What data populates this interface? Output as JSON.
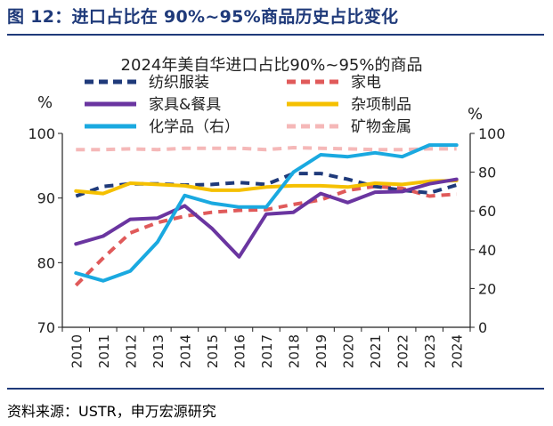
{
  "figure_title": "图 12：进口占比在 90%~95%商品历史占比变化",
  "source": "资料来源：USTR，申万宏源研究",
  "chart_data": {
    "type": "line",
    "title": "2024年美自华进口占比90%~95%的商品",
    "ylabel_left": "%",
    "ylabel_right": "%",
    "x": [
      "2010",
      "2011",
      "2012",
      "2013",
      "2014",
      "2015",
      "2016",
      "2017",
      "2018",
      "2019",
      "2020",
      "2021",
      "2022",
      "2023",
      "2024"
    ],
    "ylim_left": [
      70,
      100
    ],
    "yticks_left": [
      "70",
      "80",
      "90",
      "100"
    ],
    "ylim_right": [
      0,
      100
    ],
    "yticks_right": [
      "0",
      "20",
      "40",
      "60",
      "80",
      "100"
    ],
    "series": [
      {
        "name": "纺织服装",
        "axis": "left",
        "color": "#1f3a7a",
        "dash": "dash",
        "values": [
          90.3,
          91.8,
          92.2,
          92.2,
          92.0,
          92.1,
          92.4,
          92.1,
          93.8,
          93.8,
          92.9,
          91.8,
          91.2,
          90.8,
          92.0
        ]
      },
      {
        "name": "家电",
        "axis": "left",
        "color": "#e05a5a",
        "dash": "dash",
        "values": [
          76.5,
          80.7,
          84.6,
          86.2,
          87.2,
          87.8,
          88.1,
          88.2,
          89.0,
          89.7,
          91.2,
          91.8,
          91.5,
          90.3,
          90.6
        ]
      },
      {
        "name": "家具&餐具",
        "axis": "left",
        "color": "#6a35a0",
        "dash": "solid",
        "values": [
          82.9,
          84.1,
          86.7,
          86.9,
          88.8,
          85.3,
          80.9,
          87.5,
          87.8,
          90.7,
          89.3,
          90.9,
          91.0,
          92.2,
          92.9
        ]
      },
      {
        "name": "杂项制品",
        "axis": "left",
        "color": "#f5c000",
        "dash": "solid",
        "values": [
          91.1,
          90.7,
          92.3,
          92.1,
          91.9,
          91.2,
          91.2,
          91.7,
          91.9,
          91.9,
          91.7,
          92.3,
          92.1,
          92.6,
          92.7
        ]
      },
      {
        "name": "化学品（右）",
        "axis": "right",
        "color": "#1aa9e0",
        "dash": "solid",
        "values": [
          28,
          24,
          29,
          44,
          68,
          64,
          62,
          62,
          80,
          89,
          88,
          90,
          88,
          94,
          94
        ]
      },
      {
        "name": "矿物金属",
        "axis": "left",
        "color": "#f5b8b8",
        "dash": "dash",
        "values": [
          97.5,
          97.5,
          97.6,
          97.5,
          97.7,
          97.7,
          97.7,
          97.5,
          97.8,
          97.7,
          97.6,
          97.5,
          97.5,
          97.6,
          97.6
        ]
      }
    ]
  }
}
